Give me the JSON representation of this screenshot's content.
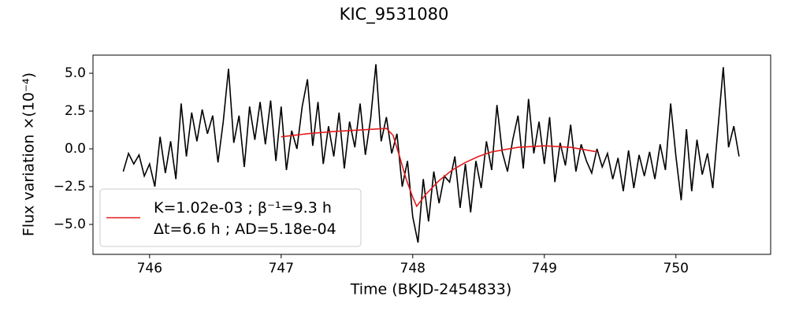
{
  "chart_data": {
    "type": "line",
    "title": "KIC_9531080",
    "x_label": "Time (BKJD-2454833)",
    "y_label": "Flux variation ×(10⁻⁴)",
    "xlim": [
      745.57,
      750.72
    ],
    "ylim": [
      -6.98,
      6.2
    ],
    "xticks": [
      746,
      747,
      748,
      749,
      750
    ],
    "yticks": [
      {
        "value": -5,
        "label": "−5.0"
      },
      {
        "value": -2.5,
        "label": "−2.5"
      },
      {
        "value": 0,
        "label": "0.0"
      },
      2.5,
      {
        "value": 5,
        "label": "5.0"
      }
    ],
    "legend": "lower left",
    "series": [
      {
        "color": "#000000",
        "x": [
          745.8,
          745.84,
          745.88,
          745.92,
          745.96,
          746.0,
          746.04,
          746.08,
          746.12,
          746.16,
          746.2,
          746.24,
          746.28,
          746.32,
          746.36,
          746.4,
          746.44,
          746.48,
          746.52,
          746.56,
          746.6,
          746.64,
          746.68,
          746.72,
          746.76,
          746.8,
          746.84,
          746.88,
          746.92,
          746.96,
          747.0,
          747.04,
          747.08,
          747.12,
          747.16,
          747.2,
          747.24,
          747.28,
          747.32,
          747.36,
          747.4,
          747.44,
          747.48,
          747.52,
          747.56,
          747.6,
          747.64,
          747.68,
          747.72,
          747.76,
          747.8,
          747.84,
          747.88,
          747.92,
          747.96,
          748.0,
          748.04,
          748.08,
          748.12,
          748.16,
          748.2,
          748.24,
          748.28,
          748.32,
          748.36,
          748.4,
          748.44,
          748.48,
          748.52,
          748.56,
          748.6,
          748.64,
          748.68,
          748.72,
          748.76,
          748.8,
          748.84,
          748.88,
          748.92,
          748.96,
          749.0,
          749.04,
          749.08,
          749.12,
          749.16,
          749.2,
          749.24,
          749.28,
          749.32,
          749.36,
          749.4,
          749.44,
          749.48,
          749.52,
          749.56,
          749.6,
          749.64,
          749.68,
          749.72,
          749.76,
          749.8,
          749.84,
          749.88,
          749.92,
          749.96,
          750.0,
          750.04,
          750.08,
          750.12,
          750.16,
          750.2,
          750.24,
          750.28,
          750.32,
          750.36,
          750.4,
          750.44,
          750.48
        ],
        "values": [
          -1.5,
          -0.3,
          -1.0,
          -0.4,
          -1.8,
          -1.0,
          -2.5,
          0.8,
          -1.6,
          0.5,
          -2.0,
          3.0,
          -0.5,
          2.4,
          0.5,
          2.6,
          1.0,
          2.2,
          -0.9,
          1.8,
          5.3,
          0.4,
          2.2,
          -1.2,
          2.8,
          0.6,
          3.1,
          0.3,
          3.2,
          -0.8,
          2.8,
          -1.4,
          1.2,
          0.0,
          2.8,
          4.6,
          0.2,
          3.1,
          -1.0,
          1.5,
          -0.5,
          2.4,
          -1.3,
          1.8,
          0.1,
          3.0,
          -0.4,
          2.0,
          5.6,
          0.5,
          2.1,
          -0.3,
          1.0,
          -2.5,
          -0.8,
          -4.5,
          -6.2,
          -2.0,
          -4.8,
          -1.5,
          -3.6,
          -1.8,
          -2.2,
          -0.5,
          -3.9,
          -1.0,
          -4.2,
          -0.8,
          -2.6,
          0.5,
          -1.4,
          2.9,
          -0.2,
          -1.5,
          0.6,
          2.2,
          -1.3,
          3.3,
          -0.3,
          1.8,
          -1.0,
          2.1,
          -2.2,
          0.4,
          -1.1,
          1.6,
          -1.5,
          0.3,
          -0.8,
          -1.6,
          0.0,
          -1.2,
          -0.3,
          -2.0,
          -0.6,
          -2.8,
          -0.1,
          -2.6,
          -0.4,
          -1.8,
          -0.2,
          -2.0,
          0.3,
          -1.4,
          3.0,
          -0.5,
          -3.4,
          1.3,
          -2.8,
          0.6,
          -1.7,
          -0.3,
          -2.6,
          1.4,
          5.4,
          0.1,
          1.5,
          -0.5
        ]
      },
      {
        "name": "K=1.02e-03 ; β⁻¹=9.3 h\nΔt=6.6 h ; AD=5.18e-04",
        "color": "#e41a1c",
        "x": [
          747.0,
          747.2,
          747.4,
          747.6,
          747.8,
          747.85,
          747.9,
          747.95,
          748.0,
          748.03,
          748.1,
          748.2,
          748.3,
          748.4,
          748.5,
          748.6,
          748.8,
          749.0,
          749.2,
          749.4
        ],
        "values": [
          0.8,
          1.0,
          1.15,
          1.25,
          1.35,
          0.9,
          -0.5,
          -2.0,
          -3.2,
          -3.8,
          -3.0,
          -2.1,
          -1.4,
          -0.9,
          -0.5,
          -0.2,
          0.1,
          0.2,
          0.1,
          -0.2
        ]
      }
    ]
  }
}
